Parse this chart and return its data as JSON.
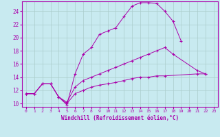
{
  "xlabel": "Windchill (Refroidissement éolien,°C)",
  "xlim": [
    -0.5,
    23.5
  ],
  "ylim": [
    9.5,
    25.5
  ],
  "xticks": [
    0,
    1,
    2,
    3,
    4,
    5,
    6,
    7,
    8,
    9,
    10,
    11,
    12,
    13,
    14,
    15,
    16,
    17,
    18,
    19,
    20,
    21,
    22,
    23
  ],
  "yticks": [
    10,
    12,
    14,
    16,
    18,
    20,
    22,
    24
  ],
  "bg_color": "#c8eaf0",
  "line_color": "#aa00aa",
  "grid_color": "#aacccc",
  "line1_x": [
    0,
    1,
    2,
    3,
    4,
    5,
    6,
    7,
    8,
    9,
    10,
    11,
    12,
    13,
    14,
    15,
    16,
    17,
    18,
    19
  ],
  "line1_y": [
    11.5,
    11.5,
    13.0,
    13.0,
    11.0,
    9.8,
    14.5,
    17.5,
    18.5,
    20.5,
    21.0,
    21.5,
    23.2,
    24.8,
    25.3,
    25.3,
    25.2,
    24.0,
    22.5,
    19.5
  ],
  "line2_x": [
    0,
    1,
    2,
    3,
    4,
    5,
    6,
    7,
    8,
    9,
    10,
    11,
    12,
    13,
    14,
    15,
    16,
    17,
    18,
    21,
    22
  ],
  "line2_y": [
    11.5,
    11.5,
    13.0,
    13.0,
    11.0,
    10.2,
    12.5,
    13.5,
    14.0,
    14.5,
    15.0,
    15.5,
    16.0,
    16.5,
    17.0,
    17.5,
    18.0,
    18.5,
    17.5,
    15.0,
    14.5
  ],
  "line3_x": [
    0,
    1,
    2,
    3,
    4,
    5,
    6,
    7,
    8,
    9,
    10,
    11,
    12,
    13,
    14,
    15,
    16,
    17,
    21,
    22
  ],
  "line3_y": [
    11.5,
    11.5,
    13.0,
    13.0,
    11.0,
    10.0,
    11.5,
    12.0,
    12.5,
    12.8,
    13.0,
    13.2,
    13.5,
    13.8,
    14.0,
    14.0,
    14.2,
    14.2,
    14.5,
    14.5
  ]
}
